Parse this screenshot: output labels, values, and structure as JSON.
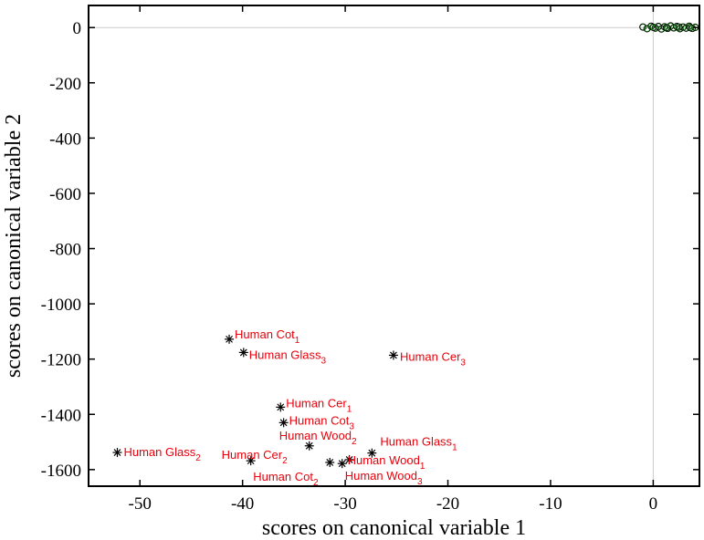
{
  "chart_data": {
    "type": "scatter",
    "title": "",
    "xlabel": "scores on canonical variable 1",
    "ylabel": "scores on canonical variable 2",
    "xlim": [
      -55,
      4.5
    ],
    "ylim": [
      -1660,
      80
    ],
    "xticks": [
      -50,
      -40,
      -30,
      -20,
      -10,
      0
    ],
    "yticks": [
      0,
      -200,
      -400,
      -600,
      -800,
      -1000,
      -1200,
      -1400,
      -1600
    ],
    "xtick_labels": [
      "-50",
      "-40",
      "-30",
      "-20",
      "-10",
      "0"
    ],
    "ytick_labels": [
      "0",
      "-200",
      "-400",
      "-600",
      "-800",
      "-1000",
      "-1200",
      "-1400",
      "-1600"
    ],
    "grid": "zero-lines",
    "label_color": "#e8000b",
    "marker_color": "#000000",
    "cluster_color": "#2ca02c",
    "labeled_points": [
      {
        "base": "Human Cot",
        "sub": "1",
        "x": -41.3,
        "y": -1128
      },
      {
        "base": "Human Glass",
        "sub": "3",
        "x": -39.9,
        "y": -1176
      },
      {
        "base": "Human Cer",
        "sub": "3",
        "x": -25.3,
        "y": -1186
      },
      {
        "base": "Human Cer",
        "sub": "1",
        "x": -36.3,
        "y": -1374
      },
      {
        "base": "Human Cot",
        "sub": "3",
        "x": -36.0,
        "y": -1430
      },
      {
        "base": "Human Wood",
        "sub": "2",
        "x": -33.5,
        "y": -1514
      },
      {
        "base": "Human Glass",
        "sub": "2",
        "x": -52.2,
        "y": -1538
      },
      {
        "base": "Human Cer",
        "sub": "2",
        "x": -39.2,
        "y": -1568
      },
      {
        "base": "Human Cot",
        "sub": "2",
        "x": -31.5,
        "y": -1574
      },
      {
        "base": "Human Wood",
        "sub": "3",
        "x": -30.3,
        "y": -1578
      },
      {
        "base": "Human Wood",
        "sub": "1",
        "x": -29.6,
        "y": -1564
      },
      {
        "base": "Human Glass",
        "sub": "1",
        "x": -27.4,
        "y": -1540
      }
    ],
    "cluster_points": [
      {
        "x": -1.0,
        "y": 2
      },
      {
        "x": -0.6,
        "y": -4
      },
      {
        "x": -0.2,
        "y": 5
      },
      {
        "x": 0.2,
        "y": -2
      },
      {
        "x": 0.5,
        "y": 4
      },
      {
        "x": 0.8,
        "y": -5
      },
      {
        "x": 1.1,
        "y": 3
      },
      {
        "x": 1.4,
        "y": -3
      },
      {
        "x": 1.7,
        "y": 6
      },
      {
        "x": 2.0,
        "y": -1
      },
      {
        "x": 2.3,
        "y": 4
      },
      {
        "x": 2.6,
        "y": -4
      },
      {
        "x": 2.9,
        "y": 2
      },
      {
        "x": 3.2,
        "y": -2
      },
      {
        "x": 3.5,
        "y": 5
      },
      {
        "x": 3.8,
        "y": -3
      },
      {
        "x": 4.1,
        "y": 1
      },
      {
        "x": 0.0,
        "y": 1
      },
      {
        "x": 1.3,
        "y": 0
      },
      {
        "x": 2.5,
        "y": 2
      },
      {
        "x": 3.6,
        "y": 0
      }
    ]
  }
}
